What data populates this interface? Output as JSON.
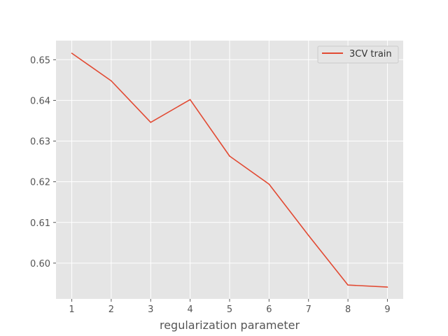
{
  "chart_data": {
    "type": "line",
    "title": "",
    "xlabel": "regularization parameter",
    "ylabel": "",
    "x": [
      1,
      2,
      3,
      4,
      5,
      6,
      7,
      8,
      9
    ],
    "xticks": [
      "1",
      "2",
      "3",
      "4",
      "5",
      "6",
      "7",
      "8",
      "9"
    ],
    "yticks": [
      "0.60",
      "0.61",
      "0.62",
      "0.63",
      "0.64",
      "0.65"
    ],
    "xlim": [
      0.6,
      9.4
    ],
    "ylim": [
      0.5912,
      0.6547
    ],
    "grid": true,
    "legend_position": "top-right",
    "series": [
      {
        "name": "3CV train",
        "color": "#e24a33",
        "values": [
          0.6516,
          0.6448,
          0.6346,
          0.6402,
          0.6263,
          0.6194,
          0.6068,
          0.5946,
          0.5941
        ]
      }
    ]
  },
  "style": {
    "plot_background": "#e5e5e5",
    "grid_color": "#ffffff",
    "text_color": "#555555"
  }
}
